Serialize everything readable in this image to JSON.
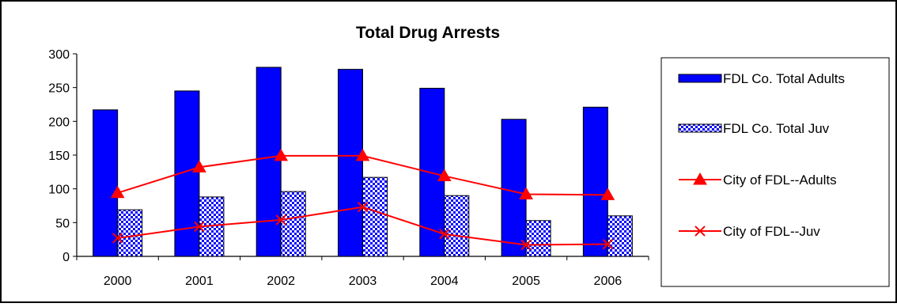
{
  "chart_data": {
    "type": "bar",
    "title": "Total Drug Arrests",
    "xlabel": "",
    "ylabel": "",
    "categories": [
      "2000",
      "2001",
      "2002",
      "2003",
      "2004",
      "2005",
      "2006"
    ],
    "ylim": [
      0,
      300
    ],
    "yticks": [
      "0",
      "50",
      "100",
      "150",
      "200",
      "250",
      "300"
    ],
    "grid": false,
    "legend_position": "right",
    "series": [
      {
        "name": "FDL Co. Total Adults",
        "kind": "bar",
        "pattern": "solid",
        "color": "#0000FF",
        "values": [
          217,
          245,
          280,
          277,
          249,
          203,
          221
        ]
      },
      {
        "name": "FDL Co. Total Juv",
        "kind": "bar",
        "pattern": "checkered",
        "color": "#0000FF",
        "values": [
          69,
          88,
          96,
          117,
          90,
          53,
          60
        ]
      },
      {
        "name": "City of FDL--Adults",
        "kind": "line",
        "marker": "triangle",
        "color": "#FF0000",
        "values": [
          94,
          132,
          149,
          149,
          119,
          92,
          91
        ]
      },
      {
        "name": "City of FDL--Juv",
        "kind": "line",
        "marker": "x",
        "color": "#FF0000",
        "values": [
          27,
          44,
          54,
          73,
          33,
          17,
          18
        ]
      }
    ]
  }
}
